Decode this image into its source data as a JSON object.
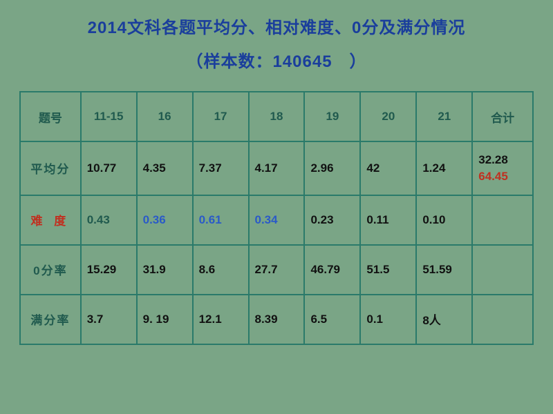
{
  "title": "2014文科各题平均分、相对难度、0分及满分情况",
  "subtitle": "（样本数：140645　）",
  "table": {
    "headers": {
      "label": "题号",
      "cols": [
        "11-15",
        "16",
        "17",
        "18",
        "19",
        "20",
        "21"
      ],
      "total": "合计"
    },
    "rows": [
      {
        "label": "平均分",
        "label_color": "#205a4e",
        "cells": [
          {
            "v": "10.77",
            "color": "#111"
          },
          {
            "v": "4.35",
            "color": "#111"
          },
          {
            "v": "7.37",
            "color": "#111"
          },
          {
            "v": "4.17",
            "color": "#111"
          },
          {
            "v": "2.96",
            "color": "#111"
          },
          {
            "v": "42",
            "color": "#111"
          },
          {
            "v": "1.24",
            "color": "#111"
          }
        ],
        "total": {
          "a": "32.28",
          "b": "64.45"
        }
      },
      {
        "label": "难 度",
        "label_color": "#c03020",
        "cells": [
          {
            "v": "0.43",
            "color": "#205a4e"
          },
          {
            "v": "0.36",
            "color": "#2a5ac8"
          },
          {
            "v": "0.61",
            "color": "#2a5ac8"
          },
          {
            "v": "0.34",
            "color": "#2a5ac8"
          },
          {
            "v": "0.23",
            "color": "#111"
          },
          {
            "v": "0.11",
            "color": "#111"
          },
          {
            "v": "0.10",
            "color": "#111"
          }
        ],
        "total": null
      },
      {
        "label": "0分率",
        "label_color": "#205a4e",
        "cells": [
          {
            "v": "15.29",
            "color": "#111"
          },
          {
            "v": "31.9",
            "color": "#111"
          },
          {
            "v": "8.6",
            "color": "#111"
          },
          {
            "v": "27.7",
            "color": "#111"
          },
          {
            "v": "46.79",
            "color": "#111"
          },
          {
            "v": "51.5",
            "color": "#111"
          },
          {
            "v": "51.59",
            "color": "#111"
          }
        ],
        "total": null
      },
      {
        "label": "满分率",
        "label_color": "#205a4e",
        "cells": [
          {
            "v": "3.7",
            "color": "#111"
          },
          {
            "v": "9. 19",
            "color": "#111"
          },
          {
            "v": "12.1",
            "color": "#111"
          },
          {
            "v": "8.39",
            "color": "#111"
          },
          {
            "v": "6.5",
            "color": "#111"
          },
          {
            "v": "0.1",
            "color": "#111"
          },
          {
            "v": "8人",
            "color": "#111"
          }
        ],
        "total": null
      }
    ]
  },
  "styling": {
    "background": "#7aa586",
    "title_color": "#1a3e9c",
    "border_color": "#2a7a6a",
    "header_color": "#205a4e",
    "accent_red": "#c03020",
    "accent_blue": "#2a5ac8",
    "title_fontsize": 24,
    "cell_fontsize": 17
  }
}
